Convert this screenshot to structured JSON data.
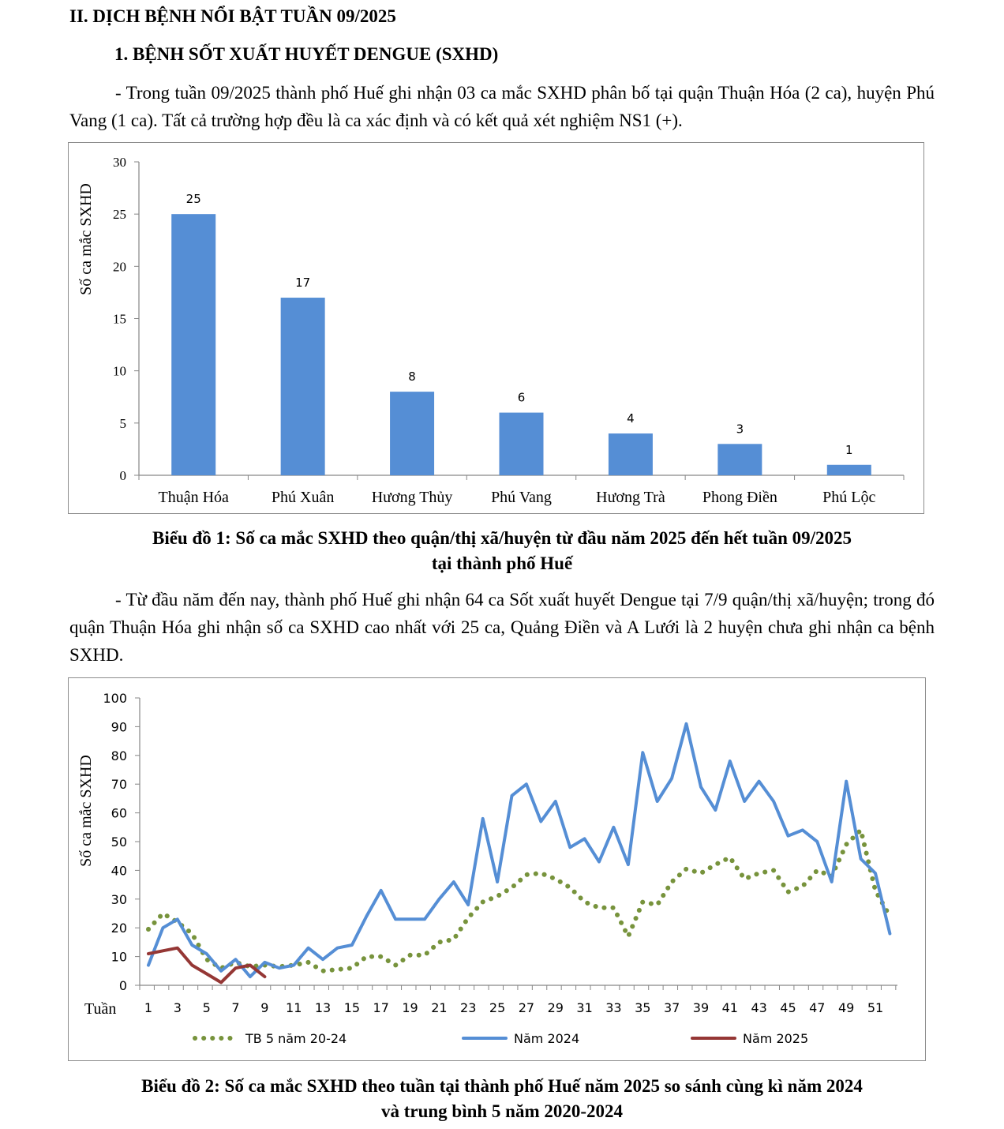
{
  "section_heading": "II. DỊCH BỆNH NỔI BẬT TUẦN 09/2025",
  "subsection_heading": "1. BỆNH SỐT XUẤT HUYẾT DENGUE (SXHD)",
  "paragraph_1": "- Trong tuần 09/2025 thành phố Huế ghi nhận 03 ca mắc SXHD phân bố tại quận Thuận Hóa (2 ca), huyện Phú Vang (1 ca). Tất cả trường hợp đều là ca xác định và có kết quả xét nghiệm NS1 (+).",
  "caption_1_line1": "Biểu đồ 1: Số ca mắc SXHD theo quận/thị xã/huyện từ đầu năm 2025 đến hết tuần 09/2025",
  "caption_1_line2": "tại thành phố Huế",
  "paragraph_2": "- Từ đầu năm đến nay, thành phố Huế ghi nhận 64 ca Sốt xuất huyết Dengue tại 7/9 quận/thị xã/huyện; trong đó quận Thuận Hóa ghi nhận số ca SXHD cao nhất với 25 ca, Quảng Điền và A Lưới là 2 huyện chưa ghi nhận ca bệnh SXHD.",
  "caption_2_line1": "Biểu đồ 2: Số ca mắc SXHD theo tuần tại thành phố Huế năm 2025 so sánh cùng kì năm 2024",
  "caption_2_line2": "và trung bình 5 năm 2020-2024",
  "chart_data": [
    {
      "type": "bar",
      "categories": [
        "Thuận Hóa",
        "Phú Xuân",
        "Hương Thủy",
        "Phú Vang",
        "Hương Trà",
        "Phong Điền",
        "Phú Lộc"
      ],
      "values": [
        25,
        17,
        8,
        6,
        4,
        3,
        1
      ],
      "ylabel": "Số ca mắc SXHD",
      "ylim": [
        0,
        30
      ],
      "yticks": [
        0,
        5,
        10,
        15,
        20,
        25,
        30
      ],
      "color": "#558ed5",
      "grid": false
    },
    {
      "type": "line",
      "xlabel": "Tuần",
      "ylabel": "Số ca mắc  SXHD",
      "ylim": [
        0,
        100
      ],
      "yticks": [
        0,
        10,
        20,
        30,
        40,
        50,
        60,
        70,
        80,
        90,
        100
      ],
      "xticks": [
        1,
        3,
        5,
        7,
        9,
        11,
        13,
        15,
        17,
        19,
        21,
        23,
        25,
        27,
        29,
        31,
        33,
        35,
        37,
        39,
        41,
        43,
        45,
        47,
        49,
        51
      ],
      "legend_position": "bottom",
      "series": [
        {
          "name": "TB 5 năm 20-24",
          "color": "#77933c",
          "style": "dotted",
          "values": [
            19.5,
            25,
            22,
            18,
            9,
            6,
            8,
            6.5,
            7,
            6.5,
            7,
            8,
            5,
            5.5,
            6,
            10,
            10,
            7,
            10.5,
            10.5,
            15,
            16,
            23.5,
            29,
            31,
            34,
            38.5,
            39,
            37,
            34,
            29,
            27,
            27,
            17,
            29,
            28,
            36,
            40.5,
            39,
            42,
            44.5,
            37,
            39,
            40,
            32.5,
            34.5,
            40,
            38,
            49,
            54,
            33,
            24
          ]
        },
        {
          "name": "Năm 2024",
          "color": "#558ed5",
          "style": "solid",
          "values": [
            7,
            20,
            23,
            14,
            11,
            5,
            9,
            3,
            8,
            6,
            7,
            13,
            9,
            13,
            14,
            24,
            33,
            23,
            23,
            23,
            30,
            36,
            28,
            58,
            36,
            66,
            70,
            57,
            64,
            48,
            51,
            43,
            55,
            42,
            81,
            64,
            72,
            91,
            69,
            61,
            78,
            64,
            71,
            64,
            52,
            54,
            50,
            36,
            71,
            44,
            39,
            18
          ]
        },
        {
          "name": "Năm 2025",
          "color": "#953735",
          "style": "solid",
          "values": [
            11,
            12,
            13,
            7,
            4,
            1,
            6,
            7,
            3
          ]
        }
      ]
    }
  ]
}
